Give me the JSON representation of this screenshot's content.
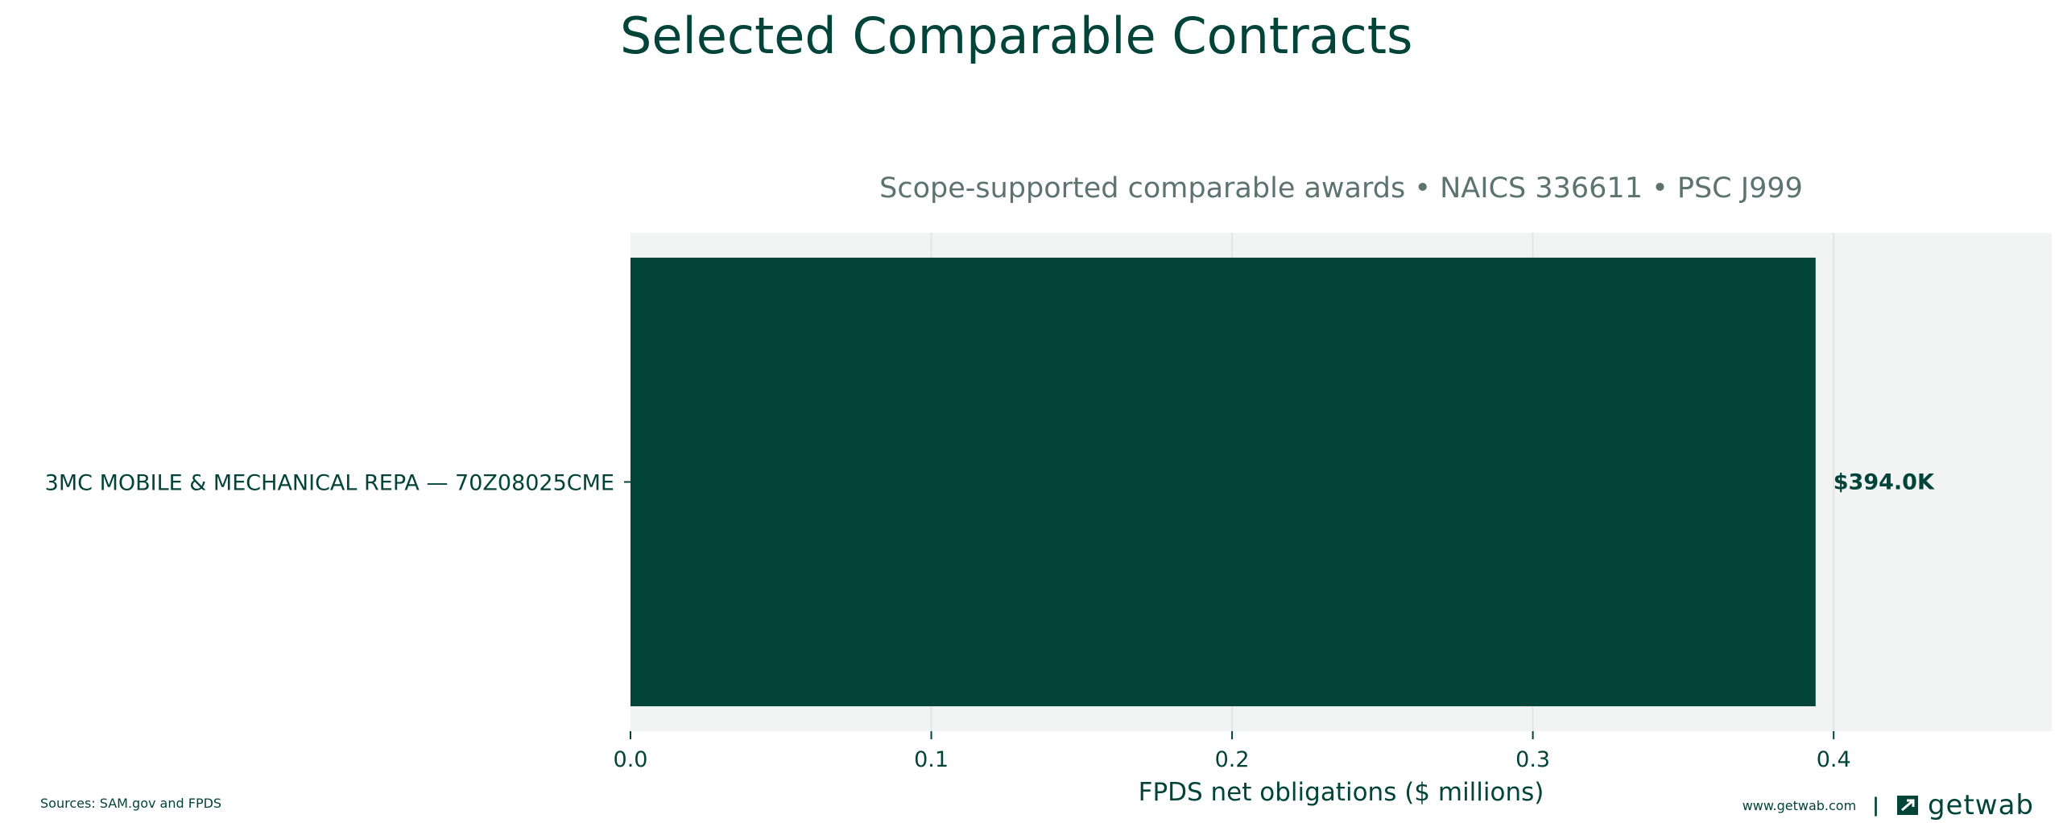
{
  "title": "Selected Comparable Contracts",
  "footer": {
    "sources": "Sources: SAM.gov and FPDS",
    "website": "www.getwab.com",
    "separator": "|",
    "brand": "getwab"
  },
  "colors": {
    "bar": "#02433a",
    "plot_bg": "#f2f4f3",
    "grid": "#dfe6e3",
    "text": "#02433a",
    "subtitle": "#5d7370"
  },
  "chart_data": {
    "type": "bar",
    "orientation": "horizontal",
    "subtitle": "Scope-supported comparable awards • NAICS 336611 • PSC J999",
    "categories": [
      "3MC MOBILE & MECHANICAL REPA — 70Z08025CME"
    ],
    "values": [
      0.394
    ],
    "value_labels": [
      "$394.0K"
    ],
    "xlabel": "FPDS net obligations ($ millions)",
    "ylabel": "",
    "xlim": [
      0,
      0.4725
    ],
    "xticks": [
      0.0,
      0.1,
      0.2,
      0.3,
      0.4
    ],
    "xtick_labels": [
      "0.0",
      "0.1",
      "0.2",
      "0.3",
      "0.4"
    ],
    "grid": true
  }
}
